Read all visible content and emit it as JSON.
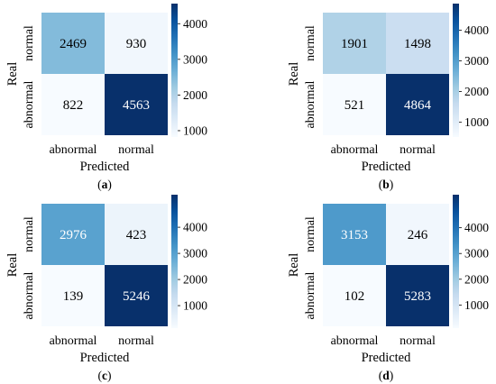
{
  "chart_data": [
    {
      "type": "heatmap",
      "caption": "(a)",
      "caption_letter": "a",
      "xlabel": "Predicted",
      "ylabel": "Real",
      "x_categories": [
        "abnormal",
        "normal"
      ],
      "y_categories": [
        "normal",
        "abnormal"
      ],
      "values": [
        [
          2469,
          930
        ],
        [
          822,
          4563
        ]
      ],
      "colorbar_ticks": [
        4000,
        3000,
        2000,
        1000
      ],
      "colorbar_range": [
        822,
        4563
      ]
    },
    {
      "type": "heatmap",
      "caption": "(b)",
      "caption_letter": "b",
      "xlabel": "Predicted",
      "ylabel": "Real",
      "x_categories": [
        "abnormal",
        "normal"
      ],
      "y_categories": [
        "normal",
        "abnormal"
      ],
      "values": [
        [
          1901,
          1498
        ],
        [
          521,
          4864
        ]
      ],
      "colorbar_ticks": [
        4000,
        3000,
        2000,
        1000
      ],
      "colorbar_range": [
        521,
        4864
      ]
    },
    {
      "type": "heatmap",
      "caption": "(c)",
      "caption_letter": "c",
      "xlabel": "Predicted",
      "ylabel": "Real",
      "x_categories": [
        "abnormal",
        "normal"
      ],
      "y_categories": [
        "normal",
        "abnormal"
      ],
      "values": [
        [
          2976,
          423
        ],
        [
          139,
          5246
        ]
      ],
      "colorbar_ticks": [
        4000,
        3000,
        2000,
        1000
      ],
      "colorbar_range": [
        139,
        5246
      ]
    },
    {
      "type": "heatmap",
      "caption": "(d)",
      "caption_letter": "d",
      "xlabel": "Predicted",
      "ylabel": "Real",
      "x_categories": [
        "abnormal",
        "normal"
      ],
      "y_categories": [
        "normal",
        "abnormal"
      ],
      "values": [
        [
          3153,
          246
        ],
        [
          102,
          5283
        ]
      ],
      "colorbar_ticks": [
        4000,
        3000,
        2000,
        1000
      ],
      "colorbar_range": [
        102,
        5283
      ]
    }
  ],
  "colormap": [
    "#f7fbff",
    "#deebf7",
    "#c6dbef",
    "#9ecae1",
    "#6baed6",
    "#4292c6",
    "#2171b5",
    "#08519c",
    "#08306b"
  ]
}
